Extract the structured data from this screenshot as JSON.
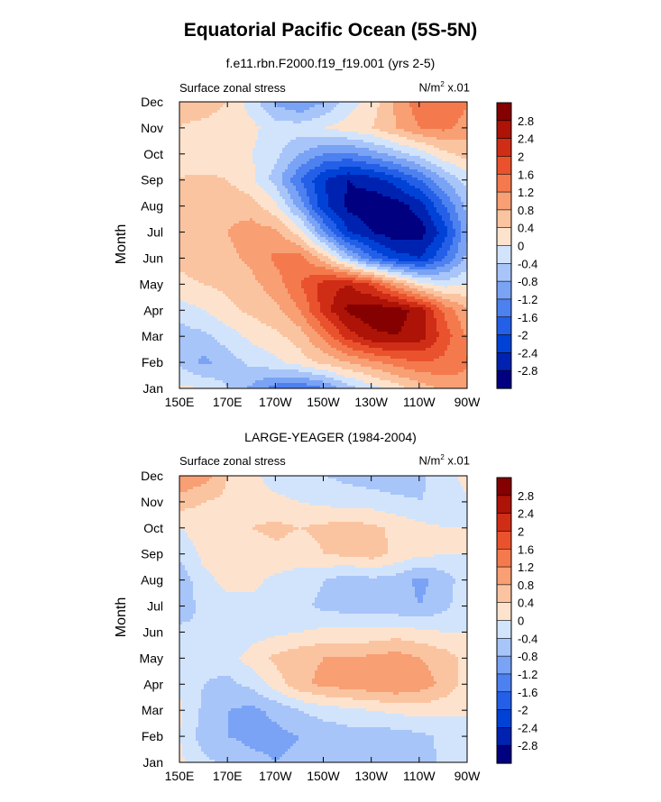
{
  "title": "Equatorial Pacific Ocean (5S-5N)",
  "chart_data": [
    {
      "type": "heatmap",
      "title": "f.e11.rbn.F2000.f19_f19.001 (yrs 2-5)",
      "left_string": "Surface zonal stress",
      "units": "N/m",
      "units_sup": "2",
      "units_suffix": "x.01",
      "ylabel": "Month",
      "x_ticks": [
        "150E",
        "170E",
        "170W",
        "150W",
        "130W",
        "110W",
        "90W"
      ],
      "y_ticks": [
        "Jan",
        "Feb",
        "Mar",
        "Apr",
        "May",
        "Jun",
        "Jul",
        "Aug",
        "Sep",
        "Oct",
        "Nov",
        "Dec"
      ],
      "colorbar_labels": [
        "2.8",
        "2.4",
        "2",
        "1.6",
        "1.2",
        "0.8",
        "0.4",
        "0",
        "-0.4",
        "-0.8",
        "-1.2",
        "-1.6",
        "-2",
        "-2.4",
        "-2.8"
      ],
      "grid": [
        [
          0.1,
          0.0,
          -0.4,
          -0.9,
          -1.4,
          -1.6,
          -1.2,
          -0.6,
          -0.2,
          0.2,
          0.6,
          0.9,
          1.1
        ],
        [
          -0.5,
          -0.9,
          -0.6,
          -0.3,
          -0.1,
          0.2,
          0.5,
          0.8,
          1.1,
          1.4,
          1.6,
          1.5,
          1.2
        ],
        [
          -0.6,
          -0.5,
          -0.2,
          0.1,
          0.3,
          0.6,
          1.3,
          2.2,
          2.7,
          2.8,
          2.6,
          1.8,
          1.1
        ],
        [
          -0.2,
          0.0,
          0.3,
          0.5,
          0.7,
          1.2,
          2.2,
          2.9,
          3.1,
          3.0,
          2.6,
          1.5,
          0.8
        ],
        [
          0.3,
          0.4,
          0.5,
          0.7,
          1.0,
          1.6,
          2.2,
          2.4,
          1.9,
          1.0,
          0.2,
          -0.2,
          0.0
        ],
        [
          0.5,
          0.6,
          0.7,
          0.9,
          1.3,
          1.4,
          0.6,
          -0.6,
          -1.6,
          -2.2,
          -2.4,
          -1.6,
          -0.6
        ],
        [
          0.6,
          0.7,
          0.8,
          1.0,
          0.9,
          0.2,
          -1.2,
          -2.4,
          -2.8,
          -3.1,
          -3.0,
          -2.2,
          -0.8
        ],
        [
          0.5,
          0.6,
          0.7,
          0.6,
          0.1,
          -1.0,
          -2.3,
          -2.9,
          -3.1,
          -3.0,
          -2.6,
          -1.6,
          -0.6
        ],
        [
          0.4,
          0.5,
          0.4,
          0.1,
          -0.6,
          -1.6,
          -2.4,
          -2.8,
          -2.6,
          -2.2,
          -1.6,
          -0.8,
          -0.2
        ],
        [
          0.3,
          0.1,
          0.2,
          0.0,
          -0.3,
          -0.8,
          -1.2,
          -1.3,
          -1.0,
          -0.6,
          -0.2,
          0.3,
          0.6
        ],
        [
          0.4,
          0.3,
          0.2,
          0.1,
          -0.2,
          -0.2,
          0.0,
          0.2,
          0.4,
          0.8,
          1.2,
          1.3,
          1.0
        ],
        [
          0.5,
          0.6,
          0.4,
          -0.2,
          -0.9,
          -1.2,
          -0.8,
          -0.2,
          0.2,
          0.9,
          1.5,
          1.6,
          1.2
        ]
      ]
    },
    {
      "type": "heatmap",
      "title": "LARGE-YEAGER (1984-2004)",
      "left_string": "Surface zonal stress",
      "units": "N/m",
      "units_sup": "2",
      "units_suffix": "x.01",
      "ylabel": "Month",
      "x_ticks": [
        "150E",
        "170E",
        "170W",
        "150W",
        "130W",
        "110W",
        "90W"
      ],
      "y_ticks": [
        "Jan",
        "Feb",
        "Mar",
        "Apr",
        "May",
        "Jun",
        "Jul",
        "Aug",
        "Sep",
        "Oct",
        "Nov",
        "Dec"
      ],
      "colorbar_labels": [
        "2.8",
        "2.4",
        "2",
        "1.6",
        "1.2",
        "0.8",
        "0.4",
        "0",
        "-0.4",
        "-0.8",
        "-1.2",
        "-1.6",
        "-2",
        "-2.4",
        "-2.8"
      ],
      "grid": [
        [
          0.1,
          -0.3,
          -0.5,
          -0.7,
          -0.8,
          -0.7,
          -0.6,
          -0.5,
          -0.6,
          -0.7,
          -0.6,
          -0.3,
          0.0
        ],
        [
          0.0,
          -0.6,
          -0.8,
          -0.9,
          -0.9,
          -0.8,
          -0.7,
          -0.6,
          -0.6,
          -0.6,
          -0.5,
          -0.3,
          0.0
        ],
        [
          0.1,
          -0.5,
          -0.8,
          -0.9,
          -0.7,
          -0.4,
          -0.2,
          -0.1,
          0.0,
          0.1,
          0.2,
          0.1,
          0.0
        ],
        [
          -0.1,
          -0.4,
          -0.5,
          -0.3,
          0.2,
          0.7,
          0.9,
          1.0,
          1.1,
          1.2,
          1.0,
          0.7,
          0.2
        ],
        [
          -0.2,
          -0.3,
          -0.2,
          0.2,
          0.5,
          0.7,
          0.8,
          0.8,
          0.9,
          1.0,
          0.8,
          0.6,
          0.2
        ],
        [
          -0.3,
          -0.4,
          -0.3,
          -0.2,
          -0.1,
          0.0,
          0.1,
          0.1,
          0.1,
          0.2,
          0.1,
          0.0,
          0.0
        ],
        [
          -0.6,
          -0.3,
          -0.1,
          -0.1,
          -0.2,
          -0.3,
          -0.5,
          -0.6,
          -0.6,
          -0.7,
          -0.8,
          -0.5,
          -0.1
        ],
        [
          -0.7,
          -0.1,
          0.1,
          0.1,
          -0.1,
          -0.2,
          -0.4,
          -0.6,
          -0.5,
          -0.6,
          -0.9,
          -0.6,
          -0.1
        ],
        [
          -0.3,
          0.1,
          0.2,
          0.2,
          0.3,
          0.2,
          0.4,
          0.5,
          0.6,
          0.3,
          0.1,
          0.0,
          0.0
        ],
        [
          0.0,
          0.2,
          0.3,
          0.4,
          0.5,
          0.4,
          0.5,
          0.6,
          0.5,
          0.3,
          0.1,
          0.0,
          0.0
        ],
        [
          0.6,
          0.4,
          0.3,
          0.2,
          0.1,
          0.0,
          -0.1,
          -0.2,
          -0.2,
          -0.3,
          -0.4,
          -0.2,
          0.0
        ],
        [
          1.2,
          1.0,
          0.4,
          0.1,
          -0.2,
          -0.3,
          -0.4,
          -0.5,
          -0.6,
          -0.7,
          -0.5,
          -0.1,
          0.1
        ]
      ]
    }
  ],
  "colors": {
    "levels": [
      "#000080",
      "#0022b0",
      "#0042d6",
      "#245fe8",
      "#4d81f0",
      "#7aa3f5",
      "#a8c5f9",
      "#d2e4fc",
      "#fde3cd",
      "#fbc4a1",
      "#f89f74",
      "#f47a4e",
      "#ea522e",
      "#d02d17",
      "#ad1306",
      "#850000"
    ]
  }
}
